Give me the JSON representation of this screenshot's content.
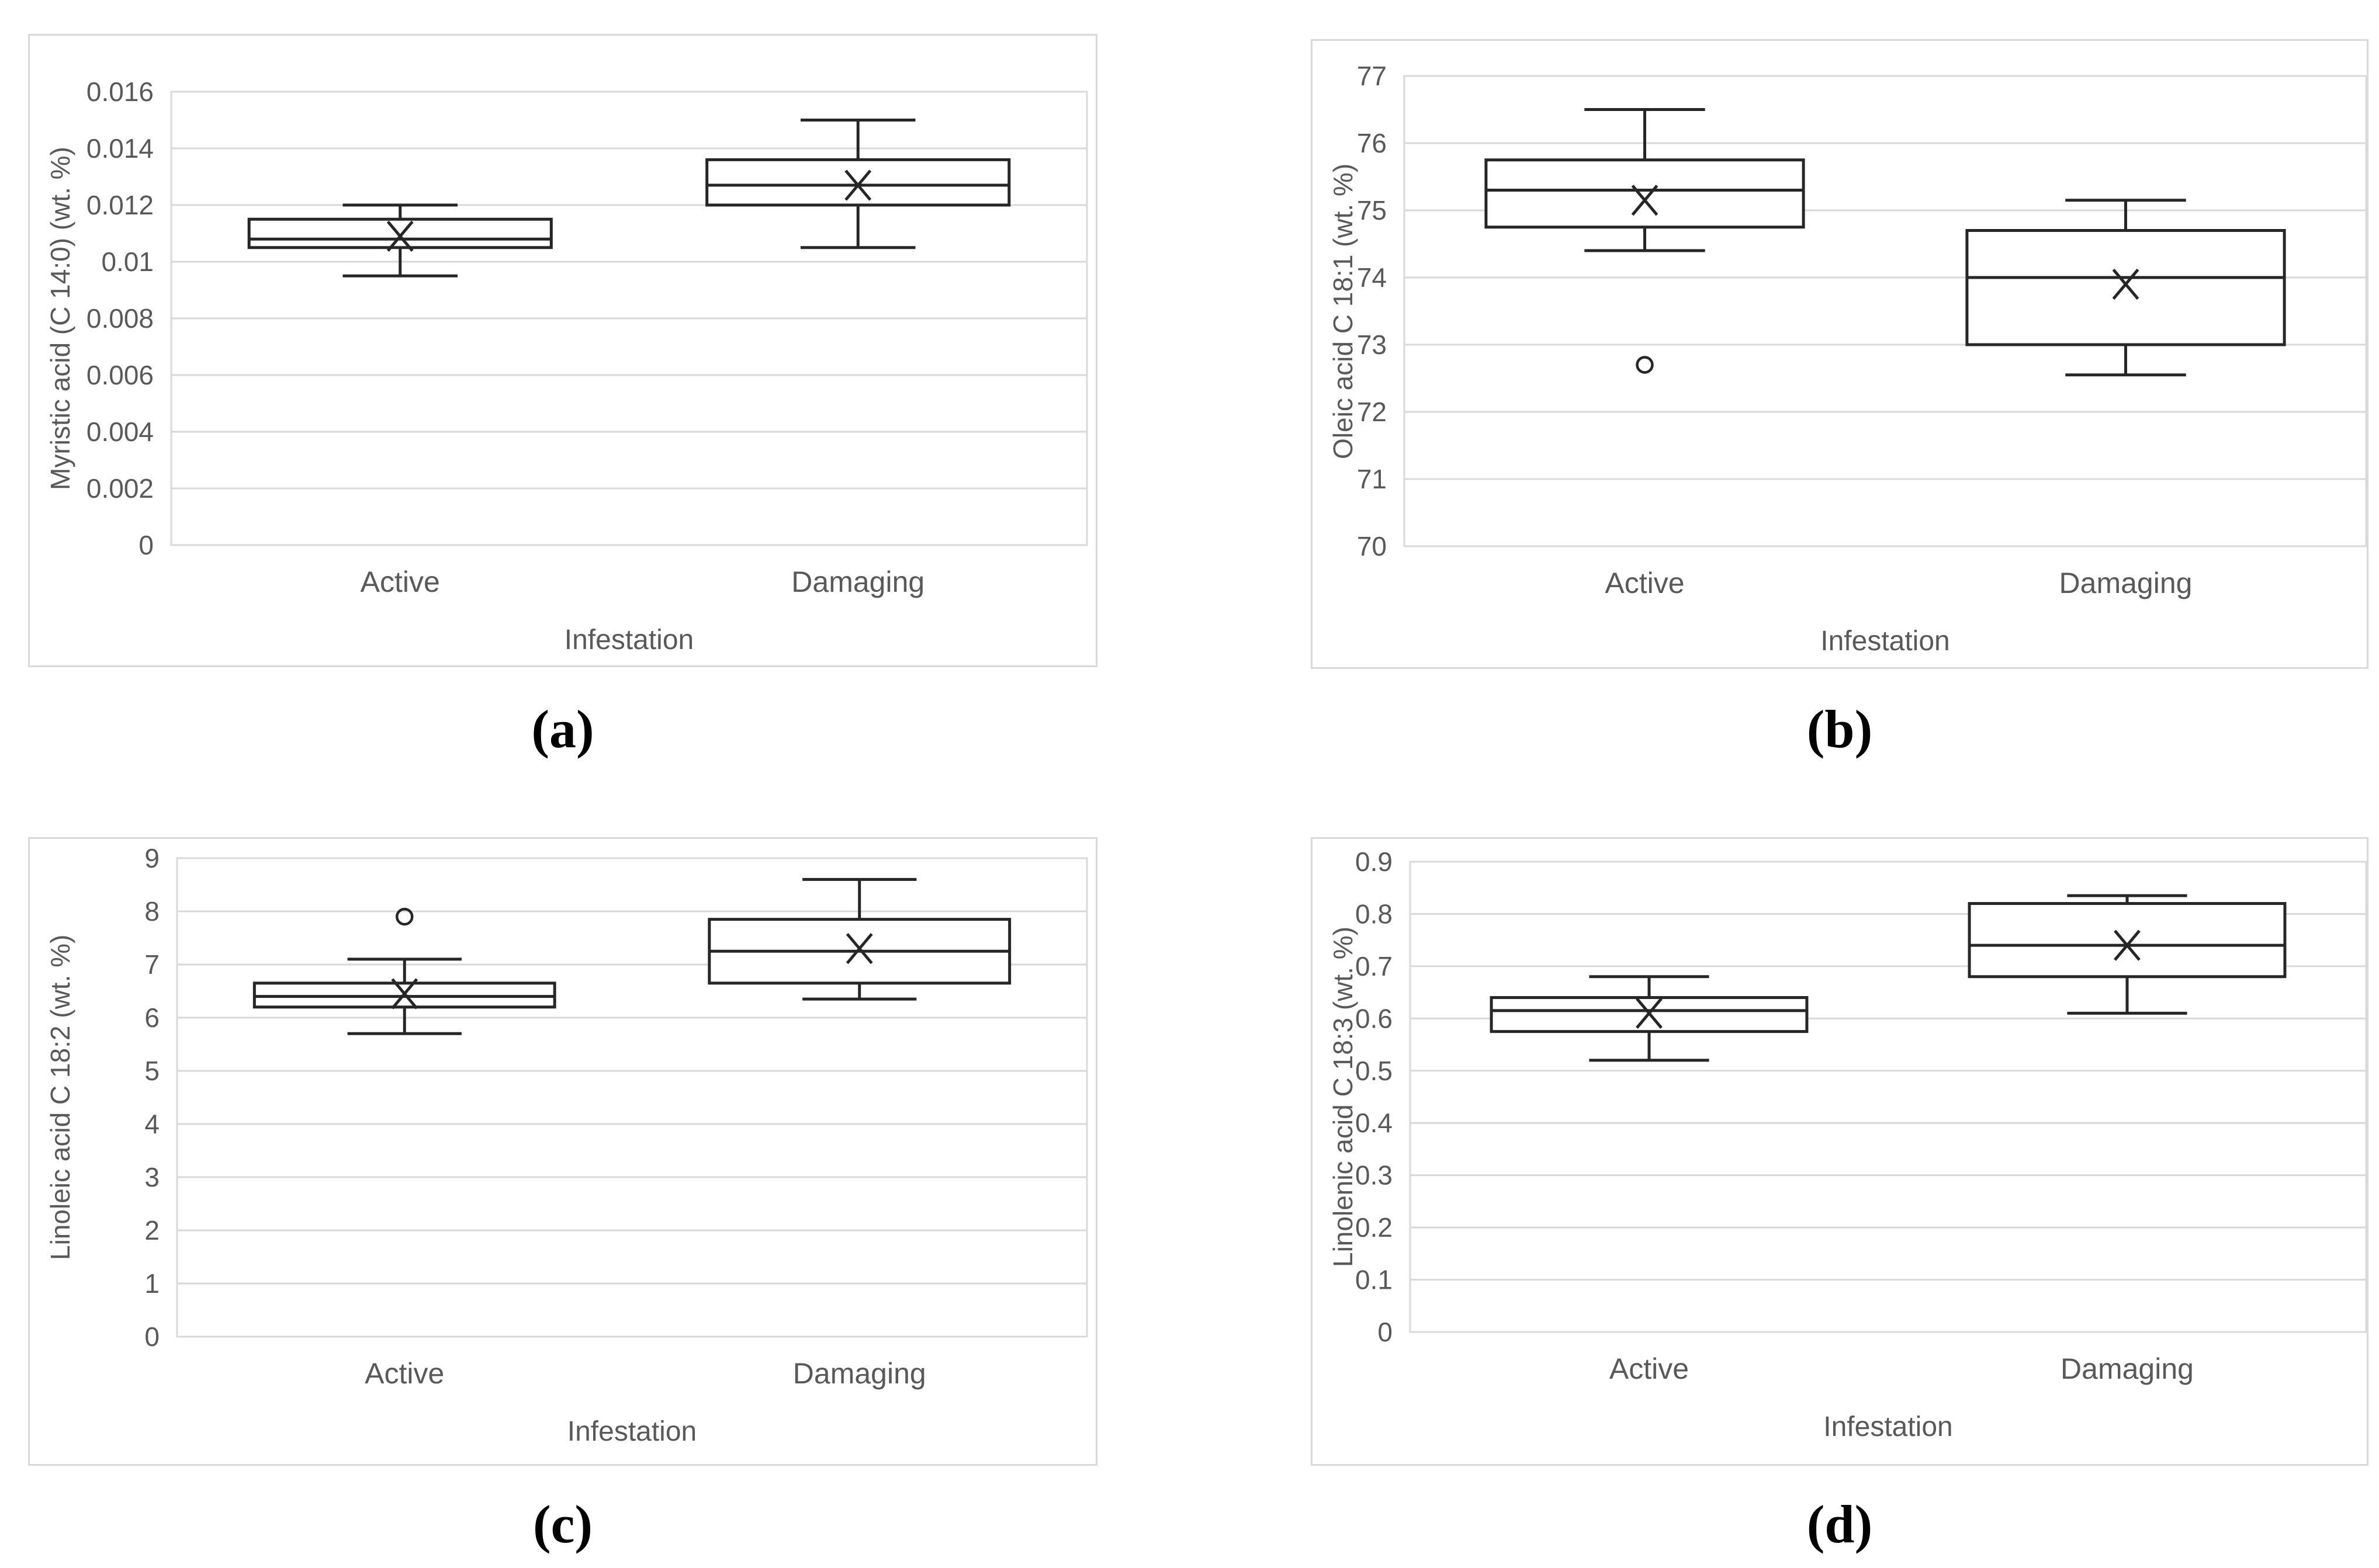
{
  "chart_data": [
    {
      "panel": "a",
      "panel_label": "(a)",
      "type": "boxplot",
      "ylabel": "Myristic acid (C 14:0) (wt. %)",
      "xlabel": "Infestation",
      "categories": [
        "Active",
        "Damaging"
      ],
      "ylim": [
        0,
        0.016
      ],
      "yticks": [
        "0.016",
        "0.014",
        "0.012",
        "0.01",
        "0.008",
        "0.006",
        "0.004",
        "0.002",
        "0"
      ],
      "grid": true,
      "legend": "none",
      "series": [
        {
          "name": "Active",
          "min": 0.0095,
          "q1": 0.0105,
          "median": 0.0108,
          "q3": 0.0115,
          "max": 0.012,
          "mean": 0.0109,
          "outliers": []
        },
        {
          "name": "Damaging",
          "min": 0.0105,
          "q1": 0.012,
          "median": 0.0127,
          "q3": 0.0136,
          "max": 0.015,
          "mean": 0.0127,
          "outliers": []
        }
      ]
    },
    {
      "panel": "b",
      "panel_label": "(b)",
      "type": "boxplot",
      "ylabel": "Oleic acid C 18:1 (wt. %)",
      "xlabel": "Infestation",
      "categories": [
        "Active",
        "Damaging"
      ],
      "ylim": [
        70,
        77
      ],
      "yticks": [
        "77",
        "76",
        "75",
        "74",
        "73",
        "72",
        "71",
        "70"
      ],
      "grid": true,
      "legend": "none",
      "series": [
        {
          "name": "Active",
          "min": 74.4,
          "q1": 74.75,
          "median": 75.3,
          "q3": 75.75,
          "max": 76.5,
          "mean": 75.15,
          "outliers": [
            72.7
          ]
        },
        {
          "name": "Damaging",
          "min": 72.55,
          "q1": 73.0,
          "median": 74.0,
          "q3": 74.7,
          "max": 75.15,
          "mean": 73.9,
          "outliers": []
        }
      ]
    },
    {
      "panel": "c",
      "panel_label": "(c)",
      "type": "boxplot",
      "ylabel": "Linoleic acid C 18:2 (wt. %)",
      "xlabel": "Infestation",
      "categories": [
        "Active",
        "Damaging"
      ],
      "ylim": [
        0,
        9
      ],
      "yticks": [
        "9",
        "8",
        "7",
        "6",
        "5",
        "4",
        "3",
        "2",
        "1",
        "0"
      ],
      "grid": true,
      "legend": "none",
      "series": [
        {
          "name": "Active",
          "min": 5.7,
          "q1": 6.2,
          "median": 6.4,
          "q3": 6.65,
          "max": 7.1,
          "mean": 6.45,
          "outliers": [
            7.9
          ]
        },
        {
          "name": "Damaging",
          "min": 6.35,
          "q1": 6.65,
          "median": 7.25,
          "q3": 7.85,
          "max": 8.6,
          "mean": 7.3,
          "outliers": []
        }
      ]
    },
    {
      "panel": "d",
      "panel_label": "(d)",
      "type": "boxplot",
      "ylabel": "Linolenic acid C 18:3 (wt. %)",
      "xlabel": "Infestation",
      "categories": [
        "Active",
        "Damaging"
      ],
      "ylim": [
        0,
        0.9
      ],
      "yticks": [
        "0.9",
        "0.8",
        "0.7",
        "0.6",
        "0.5",
        "0.4",
        "0.3",
        "0.2",
        "0.1",
        "0"
      ],
      "grid": true,
      "legend": "none",
      "series": [
        {
          "name": "Active",
          "min": 0.52,
          "q1": 0.575,
          "median": 0.615,
          "q3": 0.64,
          "max": 0.68,
          "mean": 0.61,
          "outliers": []
        },
        {
          "name": "Damaging",
          "min": 0.61,
          "q1": 0.68,
          "median": 0.74,
          "q3": 0.82,
          "max": 0.835,
          "mean": 0.74,
          "outliers": []
        }
      ]
    }
  ]
}
